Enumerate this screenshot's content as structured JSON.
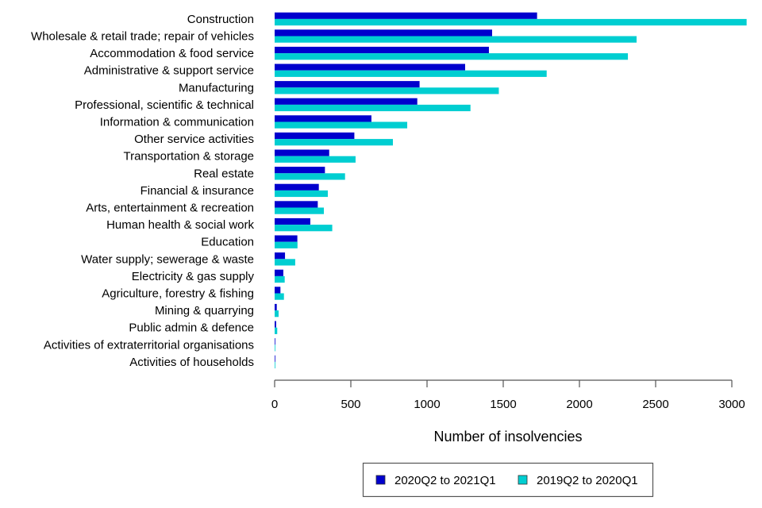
{
  "chart_data": {
    "type": "bar",
    "orientation": "horizontal",
    "title": "",
    "xlabel": "Number of insolvencies",
    "ylabel": "",
    "xlim": [
      0,
      3000
    ],
    "xticks": [
      0,
      500,
      1000,
      1500,
      2000,
      2500,
      3000
    ],
    "grid": false,
    "legend_position": "bottom-center",
    "categories": [
      "Construction",
      "Wholesale & retail trade; repair of vehicles",
      "Accommodation & food service",
      "Administrative & support service",
      "Manufacturing",
      "Professional, scientific & technical",
      "Information & communication",
      "Other service activities",
      "Transportation & storage",
      "Real estate",
      "Financial & insurance",
      "Arts, entertainment & recreation",
      "Human health & social work",
      "Education",
      "Water supply; sewerage & waste",
      "Electricity & gas supply",
      "Agriculture, forestry & fishing",
      "Mining & quarrying",
      "Public admin & defence",
      "Activities of extraterritorial organisations",
      "Activities of households"
    ],
    "series": [
      {
        "name": "2020Q2 to 2021Q1",
        "color": "#0000CD",
        "values": [
          1722,
          1427,
          1406,
          1250,
          951,
          936,
          635,
          523,
          358,
          330,
          290,
          283,
          234,
          149,
          68,
          57,
          38,
          14,
          10,
          1,
          2
        ]
      },
      {
        "name": "2019Q2 to 2020Q1",
        "color": "#00CED1",
        "values": [
          3097,
          2375,
          2318,
          1785,
          1471,
          1285,
          870,
          776,
          531,
          462,
          349,
          323,
          378,
          150,
          135,
          66,
          61,
          26,
          17,
          1,
          2
        ]
      }
    ]
  }
}
